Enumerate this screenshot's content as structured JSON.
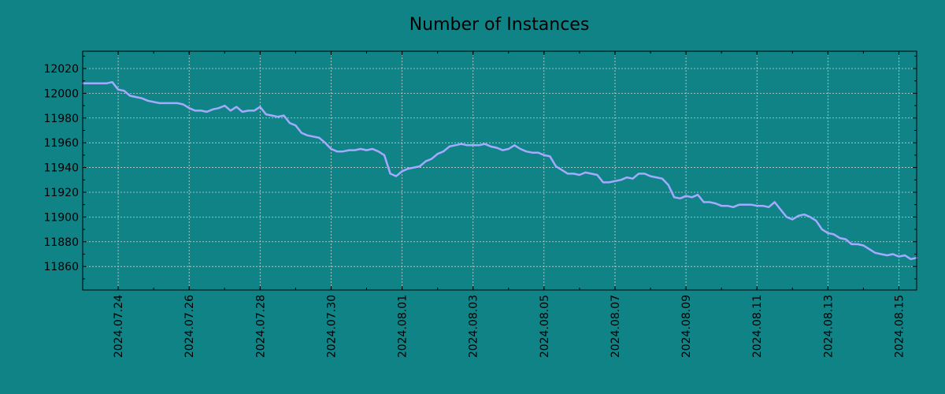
{
  "chart_data": {
    "type": "line",
    "title": "Number of Instances",
    "xlabel": "",
    "ylabel": "",
    "x_range": [
      "2024-07-23",
      "2024-08-15T12:00"
    ],
    "ylim": [
      11841,
      12034
    ],
    "y_ticks": [
      11860,
      11880,
      11900,
      11920,
      11940,
      11960,
      11980,
      12000,
      12020
    ],
    "x_ticks": [
      "2024.07.24",
      "2024.07.26",
      "2024.07.28",
      "2024.07.30",
      "2024.08.01",
      "2024.08.03",
      "2024.08.05",
      "2024.08.07",
      "2024.08.09",
      "2024.08.11",
      "2024.08.13",
      "2024.08.15"
    ],
    "grid": true,
    "legend": "none",
    "colors": {
      "background": "#108387",
      "line": "#a4aaff",
      "grid": "#c8d2d2",
      "axes": "#000000"
    },
    "series": [
      {
        "x": [
          "2024-07-23T00:00",
          "2024-07-23T04:00",
          "2024-07-23T08:00",
          "2024-07-23T12:00",
          "2024-07-23T16:00",
          "2024-07-23T20:00",
          "2024-07-24T00:00",
          "2024-07-24T04:00",
          "2024-07-24T08:00",
          "2024-07-24T12:00",
          "2024-07-24T16:00",
          "2024-07-24T20:00",
          "2024-07-25T00:00",
          "2024-07-25T04:00",
          "2024-07-25T08:00",
          "2024-07-25T12:00",
          "2024-07-25T16:00",
          "2024-07-25T20:00",
          "2024-07-26T00:00",
          "2024-07-26T04:00",
          "2024-07-26T08:00",
          "2024-07-26T12:00",
          "2024-07-26T16:00",
          "2024-07-26T20:00",
          "2024-07-27T00:00",
          "2024-07-27T04:00",
          "2024-07-27T08:00",
          "2024-07-27T12:00",
          "2024-07-27T16:00",
          "2024-07-27T20:00",
          "2024-07-28T00:00",
          "2024-07-28T04:00",
          "2024-07-28T08:00",
          "2024-07-28T12:00",
          "2024-07-28T16:00",
          "2024-07-28T20:00",
          "2024-07-29T00:00",
          "2024-07-29T04:00",
          "2024-07-29T08:00",
          "2024-07-29T12:00",
          "2024-07-29T16:00",
          "2024-07-29T20:00",
          "2024-07-30T00:00",
          "2024-07-30T04:00",
          "2024-07-30T08:00",
          "2024-07-30T12:00",
          "2024-07-30T16:00",
          "2024-07-30T20:00",
          "2024-07-31T00:00",
          "2024-07-31T04:00",
          "2024-07-31T08:00",
          "2024-07-31T12:00",
          "2024-07-31T16:00",
          "2024-07-31T20:00",
          "2024-08-01T00:00",
          "2024-08-01T04:00",
          "2024-08-01T08:00",
          "2024-08-01T12:00",
          "2024-08-01T16:00",
          "2024-08-01T20:00",
          "2024-08-02T00:00",
          "2024-08-02T04:00",
          "2024-08-02T08:00",
          "2024-08-02T12:00",
          "2024-08-02T16:00",
          "2024-08-02T20:00",
          "2024-08-03T00:00",
          "2024-08-03T04:00",
          "2024-08-03T08:00",
          "2024-08-03T12:00",
          "2024-08-03T16:00",
          "2024-08-03T20:00",
          "2024-08-04T00:00",
          "2024-08-04T04:00",
          "2024-08-04T08:00",
          "2024-08-04T12:00",
          "2024-08-04T16:00",
          "2024-08-04T20:00",
          "2024-08-05T00:00",
          "2024-08-05T04:00",
          "2024-08-05T08:00",
          "2024-08-05T12:00",
          "2024-08-05T16:00",
          "2024-08-05T20:00",
          "2024-08-06T00:00",
          "2024-08-06T04:00",
          "2024-08-06T08:00",
          "2024-08-06T12:00",
          "2024-08-06T16:00",
          "2024-08-06T20:00",
          "2024-08-07T00:00",
          "2024-08-07T04:00",
          "2024-08-07T08:00",
          "2024-08-07T12:00",
          "2024-08-07T16:00",
          "2024-08-07T20:00",
          "2024-08-08T00:00",
          "2024-08-08T04:00",
          "2024-08-08T08:00",
          "2024-08-08T12:00",
          "2024-08-08T16:00",
          "2024-08-08T20:00",
          "2024-08-09T00:00",
          "2024-08-09T04:00",
          "2024-08-09T08:00",
          "2024-08-09T12:00",
          "2024-08-09T16:00",
          "2024-08-09T20:00",
          "2024-08-10T00:00",
          "2024-08-10T04:00",
          "2024-08-10T08:00",
          "2024-08-10T12:00",
          "2024-08-10T16:00",
          "2024-08-10T20:00",
          "2024-08-11T00:00",
          "2024-08-11T04:00",
          "2024-08-11T08:00",
          "2024-08-11T12:00",
          "2024-08-11T16:00",
          "2024-08-11T20:00",
          "2024-08-12T00:00",
          "2024-08-12T04:00",
          "2024-08-12T08:00",
          "2024-08-12T12:00",
          "2024-08-12T16:00",
          "2024-08-12T20:00",
          "2024-08-13T00:00",
          "2024-08-13T04:00",
          "2024-08-13T08:00",
          "2024-08-13T12:00",
          "2024-08-13T16:00",
          "2024-08-13T20:00",
          "2024-08-14T00:00",
          "2024-08-14T04:00",
          "2024-08-14T08:00",
          "2024-08-14T12:00",
          "2024-08-14T16:00",
          "2024-08-14T20:00",
          "2024-08-15T00:00",
          "2024-08-15T04:00",
          "2024-08-15T08:00",
          "2024-08-15T12:00"
        ],
        "y": [
          12008,
          12008,
          12008,
          12008,
          12008,
          12009,
          12003,
          12002,
          11998,
          11997,
          11996,
          11994,
          11993,
          11992,
          11992,
          11992,
          11992,
          11991,
          11988,
          11986,
          11986,
          11985,
          11987,
          11988,
          11990,
          11986,
          11989,
          11985,
          11986,
          11986,
          11989,
          11983,
          11982,
          11981,
          11982,
          11976,
          11974,
          11968,
          11966,
          11965,
          11964,
          11960,
          11955,
          11953,
          11953,
          11954,
          11954,
          11955,
          11954,
          11955,
          11953,
          11950,
          11935,
          11933,
          11937,
          11939,
          11940,
          11941,
          11945,
          11947,
          11951,
          11953,
          11957,
          11958,
          11959,
          11958,
          11958,
          11958,
          11959,
          11957,
          11956,
          11954,
          11955,
          11958,
          11955,
          11953,
          11952,
          11952,
          11950,
          11949,
          11941,
          11938,
          11935,
          11935,
          11934,
          11936,
          11935,
          11934,
          11928,
          11928,
          11929,
          11930,
          11932,
          11931,
          11935,
          11935,
          11933,
          11932,
          11931,
          11926,
          11916,
          11915,
          11917,
          11916,
          11918,
          11912,
          11912,
          11911,
          11909,
          11909,
          11908,
          11910,
          11910,
          11910,
          11909,
          11909,
          11908,
          11912,
          11906,
          11900,
          11898,
          11901,
          11902,
          11900,
          11897,
          11890,
          11887,
          11886,
          11883,
          11882,
          11878,
          11878,
          11877,
          11874,
          11871,
          11870,
          11869,
          11870,
          11868,
          11869,
          11866,
          11867
        ]
      }
    ]
  }
}
